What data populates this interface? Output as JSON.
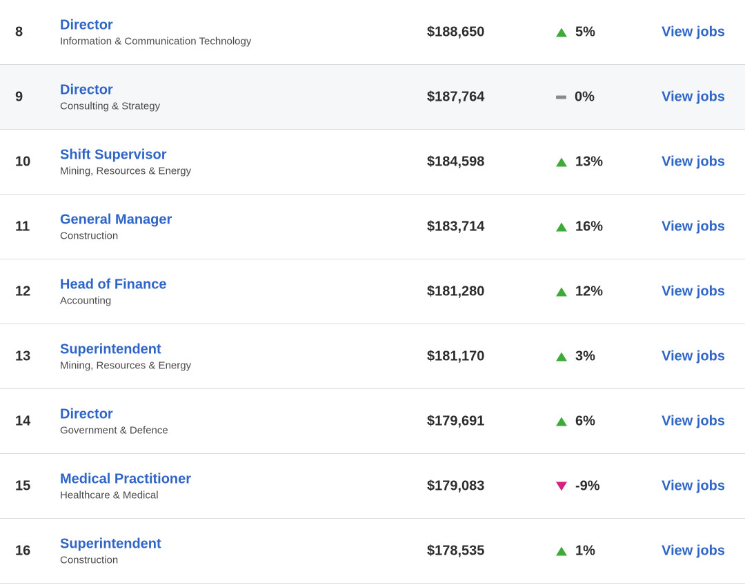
{
  "rows": [
    {
      "rank": "8",
      "role": "Director",
      "industry": "Information & Communication Technology",
      "salary": "$188,650",
      "trend": "up",
      "change": "5%",
      "link": "View jobs"
    },
    {
      "rank": "9",
      "role": "Director",
      "industry": "Consulting & Strategy",
      "salary": "$187,764",
      "trend": "flat",
      "change": "0%",
      "link": "View jobs"
    },
    {
      "rank": "10",
      "role": "Shift Supervisor",
      "industry": "Mining, Resources & Energy",
      "salary": "$184,598",
      "trend": "up",
      "change": "13%",
      "link": "View jobs"
    },
    {
      "rank": "11",
      "role": "General Manager",
      "industry": "Construction",
      "salary": "$183,714",
      "trend": "up",
      "change": "16%",
      "link": "View jobs"
    },
    {
      "rank": "12",
      "role": "Head of Finance",
      "industry": "Accounting",
      "salary": "$181,280",
      "trend": "up",
      "change": "12%",
      "link": "View jobs"
    },
    {
      "rank": "13",
      "role": "Superintendent",
      "industry": "Mining, Resources & Energy",
      "salary": "$181,170",
      "trend": "up",
      "change": "3%",
      "link": "View jobs"
    },
    {
      "rank": "14",
      "role": "Director",
      "industry": "Government & Defence",
      "salary": "$179,691",
      "trend": "up",
      "change": "6%",
      "link": "View jobs"
    },
    {
      "rank": "15",
      "role": "Medical Practitioner",
      "industry": "Healthcare & Medical",
      "salary": "$179,083",
      "trend": "down",
      "change": "-9%",
      "link": "View jobs"
    },
    {
      "rank": "16",
      "role": "Superintendent",
      "industry": "Construction",
      "salary": "$178,535",
      "trend": "up",
      "change": "1%",
      "link": "View jobs"
    }
  ],
  "colors": {
    "link": "#2f65c7",
    "up": "#3eaa3a",
    "down": "#d6227f",
    "flat": "#8b8b8b"
  }
}
